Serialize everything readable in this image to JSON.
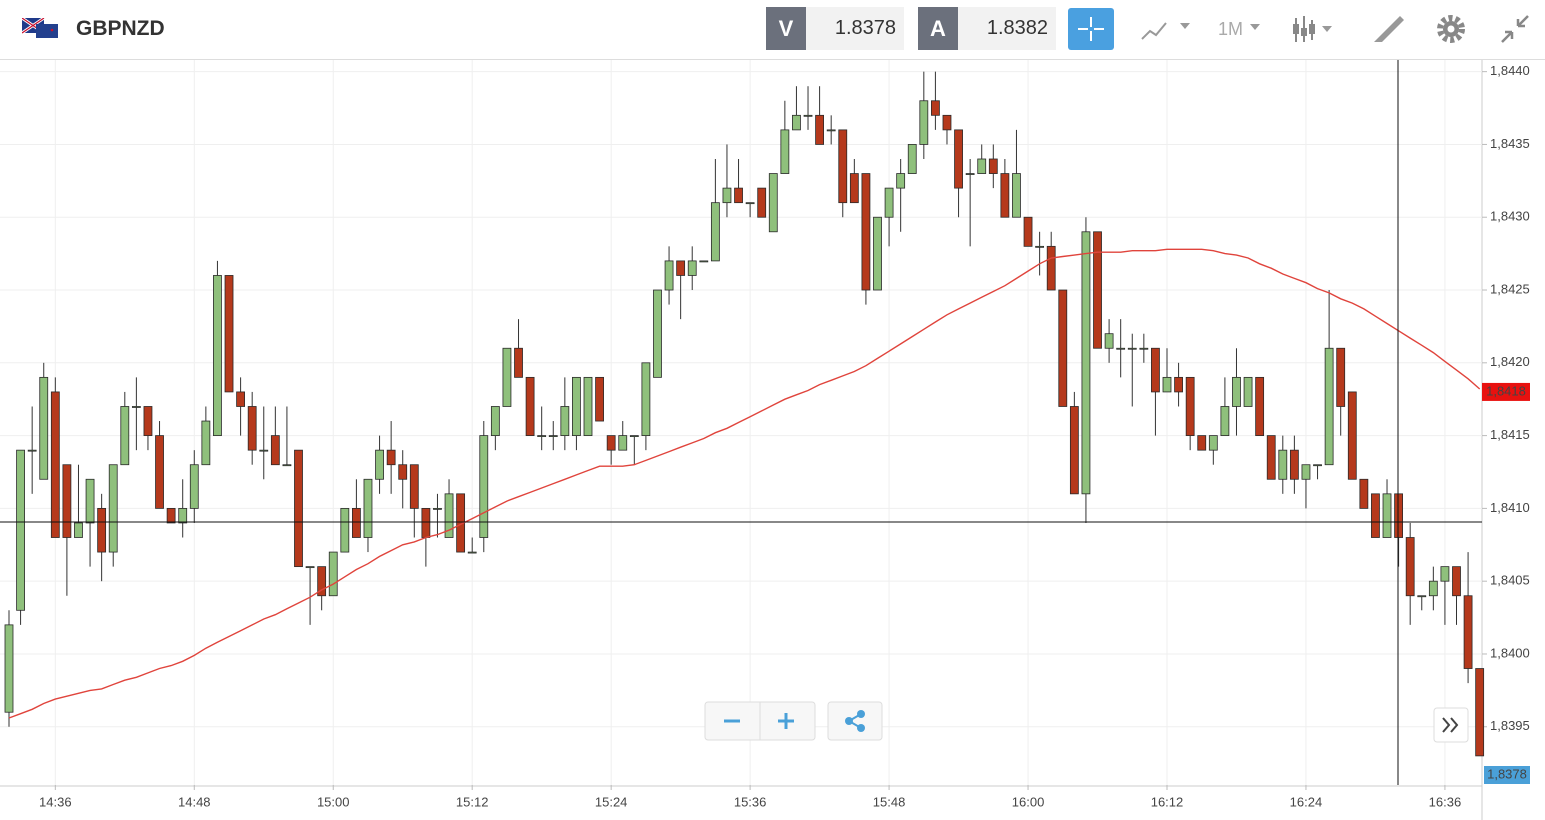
{
  "toolbar": {
    "symbol": "GBPNZD",
    "sell_label": "V",
    "sell_price": "1.8378",
    "buy_label": "A",
    "buy_price": "1.8382",
    "timeframe": "1M"
  },
  "chart_data": {
    "type": "candlestick",
    "categories": [
      null,
      null,
      null,
      null,
      "14:36",
      null,
      null,
      null,
      null,
      null,
      null,
      null,
      null,
      null,
      null,
      null,
      "14:48",
      null,
      null,
      null,
      null,
      null,
      null,
      null,
      null,
      null,
      null,
      null,
      "15:00",
      null,
      null,
      null,
      null,
      null,
      null,
      null,
      null,
      null,
      null,
      null,
      "15:12",
      null,
      null,
      null,
      null,
      null,
      null,
      null,
      null,
      null,
      null,
      null,
      "15:24",
      null,
      null,
      null,
      null,
      null,
      null,
      null,
      null,
      null,
      null,
      null,
      "15:36",
      null,
      null,
      null,
      null,
      null,
      null,
      null,
      null,
      null,
      null,
      null,
      "15:48",
      null,
      null,
      null,
      null,
      null,
      null,
      null,
      null,
      null,
      null,
      null,
      "16:00",
      null,
      null,
      null,
      null,
      null,
      null,
      null,
      null,
      null,
      null,
      null,
      "16:12",
      null,
      null,
      null,
      null,
      null,
      null,
      null,
      null,
      null,
      null,
      null,
      "16:24",
      null,
      null,
      null,
      null,
      null,
      null,
      null,
      null,
      null,
      null,
      null,
      "16:36",
      null,
      null,
      null
    ],
    "open": [
      1.8396,
      1.8403,
      1.8414,
      1.8412,
      1.8418,
      1.8413,
      1.8408,
      1.8409,
      1.841,
      1.8407,
      1.8413,
      1.8417,
      1.8417,
      1.8415,
      1.841,
      1.8409,
      1.841,
      1.8413,
      1.8415,
      1.8426,
      1.8418,
      1.8417,
      1.8414,
      1.8415,
      1.8413,
      1.8414,
      1.8406,
      1.8406,
      1.8404,
      1.8407,
      1.841,
      1.8408,
      1.8412,
      1.8414,
      1.8413,
      1.8413,
      1.841,
      1.841,
      1.8408,
      1.8411,
      1.8407,
      1.8408,
      1.8415,
      1.8417,
      1.8421,
      1.8419,
      1.8415,
      1.8415,
      1.8415,
      1.8415,
      1.8415,
      1.8419,
      1.8415,
      1.8414,
      1.8415,
      1.8415,
      1.8419,
      1.8425,
      1.8427,
      1.8426,
      1.8427,
      1.8427,
      1.8431,
      1.8432,
      1.8431,
      1.8432,
      1.8429,
      1.8433,
      1.8436,
      1.8437,
      1.8437,
      1.8436,
      1.8436,
      1.8433,
      1.8433,
      1.8425,
      1.843,
      1.8432,
      1.8433,
      1.8435,
      1.8438,
      1.8437,
      1.8436,
      1.8433,
      1.8433,
      1.8434,
      1.8433,
      1.843,
      1.843,
      1.8428,
      1.8428,
      1.8425,
      1.8417,
      1.8411,
      1.8429,
      1.8421,
      1.8421,
      1.8421,
      1.8421,
      1.8421,
      1.8418,
      1.8419,
      1.8419,
      1.8415,
      1.8414,
      1.8415,
      1.8417,
      1.8417,
      1.8419,
      1.8415,
      1.8412,
      1.8414,
      1.8412,
      1.8413,
      1.8413,
      1.8421,
      1.8418,
      1.8412,
      1.8411,
      1.8408,
      1.8411,
      1.8408,
      1.8404,
      1.8404,
      1.8405,
      1.8406,
      1.8404,
      1.8399
    ],
    "high": [
      1.8403,
      1.8414,
      1.8417,
      1.842,
      1.8419,
      1.8413,
      1.8413,
      1.8412,
      1.8411,
      1.8413,
      1.8418,
      1.8419,
      1.8417,
      1.8416,
      1.841,
      1.8412,
      1.8414,
      1.8417,
      1.8427,
      1.8426,
      1.8419,
      1.8418,
      1.8417,
      1.8417,
      1.8417,
      1.8414,
      1.8406,
      1.8406,
      1.8407,
      1.841,
      1.8412,
      1.8412,
      1.8415,
      1.8416,
      1.8414,
      1.8413,
      1.841,
      1.8411,
      1.8412,
      1.8411,
      1.8408,
      1.8416,
      1.8417,
      1.8421,
      1.8423,
      1.8419,
      1.8417,
      1.8416,
      1.8419,
      1.8419,
      1.8419,
      1.8419,
      1.8415,
      1.8416,
      1.8415,
      1.842,
      1.8425,
      1.8428,
      1.8427,
      1.8428,
      1.8427,
      1.8434,
      1.8435,
      1.8434,
      1.8431,
      1.8432,
      1.8433,
      1.8438,
      1.8439,
      1.8439,
      1.8439,
      1.8437,
      1.8436,
      1.8434,
      1.8433,
      1.843,
      1.8432,
      1.8434,
      1.8435,
      1.844,
      1.844,
      1.8437,
      1.8436,
      1.8434,
      1.8435,
      1.8435,
      1.8434,
      1.8436,
      1.843,
      1.8429,
      1.8429,
      1.8425,
      1.8418,
      1.843,
      1.8429,
      1.8423,
      1.8423,
      1.8422,
      1.8422,
      1.8421,
      1.8421,
      1.842,
      1.8419,
      1.8415,
      1.8415,
      1.8419,
      1.8421,
      1.8419,
      1.8419,
      1.8415,
      1.8415,
      1.8415,
      1.8413,
      1.8413,
      1.8425,
      1.8421,
      1.8418,
      1.8412,
      1.8411,
      1.8412,
      1.8411,
      1.8409,
      1.8404,
      1.8406,
      1.8406,
      1.8406,
      1.8407,
      1.8399
    ],
    "low": [
      1.8395,
      1.8402,
      1.8411,
      1.8412,
      1.8408,
      1.8404,
      1.8408,
      1.8406,
      1.8405,
      1.8406,
      1.8413,
      1.8414,
      1.8414,
      1.841,
      1.8409,
      1.8408,
      1.8409,
      1.8413,
      1.8415,
      1.8418,
      1.8415,
      1.8413,
      1.8412,
      1.8413,
      1.8413,
      1.8406,
      1.8402,
      1.8403,
      1.8404,
      1.8407,
      1.8408,
      1.8407,
      1.8411,
      1.8411,
      1.841,
      1.8408,
      1.8406,
      1.8408,
      1.8408,
      1.8407,
      1.8407,
      1.8407,
      1.8414,
      1.8417,
      1.8419,
      1.8415,
      1.8414,
      1.8414,
      1.8414,
      1.8414,
      1.8415,
      1.8416,
      1.8413,
      1.8414,
      1.8413,
      1.8414,
      1.8419,
      1.8424,
      1.8423,
      1.8425,
      1.8427,
      1.8427,
      1.843,
      1.8431,
      1.843,
      1.843,
      1.8429,
      1.8433,
      1.8436,
      1.8436,
      1.8435,
      1.8435,
      1.843,
      1.8431,
      1.8424,
      1.8425,
      1.8428,
      1.8429,
      1.8433,
      1.8434,
      1.8436,
      1.8435,
      1.843,
      1.8428,
      1.8433,
      1.8432,
      1.843,
      1.843,
      1.8428,
      1.8426,
      1.8425,
      1.8417,
      1.8411,
      1.8409,
      1.8421,
      1.842,
      1.8419,
      1.8417,
      1.842,
      1.8415,
      1.8418,
      1.8417,
      1.8414,
      1.8414,
      1.8413,
      1.8415,
      1.8415,
      1.8417,
      1.8415,
      1.8412,
      1.8411,
      1.8411,
      1.841,
      1.8412,
      1.8413,
      1.8415,
      1.8412,
      1.841,
      1.8408,
      1.8408,
      1.8406,
      1.8402,
      1.8403,
      1.8403,
      1.8402,
      1.8402,
      1.8398,
      1.8393
    ],
    "close": [
      1.8402,
      1.8414,
      1.8414,
      1.8419,
      1.8408,
      1.8408,
      1.8409,
      1.8412,
      1.8407,
      1.8413,
      1.8417,
      1.8417,
      1.8415,
      1.841,
      1.8409,
      1.841,
      1.8413,
      1.8416,
      1.8426,
      1.8418,
      1.8417,
      1.8414,
      1.8414,
      1.8413,
      1.8413,
      1.8406,
      1.8406,
      1.8404,
      1.8407,
      1.841,
      1.8408,
      1.8412,
      1.8414,
      1.8413,
      1.8412,
      1.841,
      1.8408,
      1.841,
      1.8411,
      1.8407,
      1.8407,
      1.8415,
      1.8417,
      1.8421,
      1.8419,
      1.8415,
      1.8415,
      1.8415,
      1.8417,
      1.8419,
      1.8419,
      1.8416,
      1.8414,
      1.8415,
      1.8415,
      1.842,
      1.8425,
      1.8427,
      1.8426,
      1.8427,
      1.8427,
      1.8431,
      1.8432,
      1.8431,
      1.8431,
      1.843,
      1.8433,
      1.8436,
      1.8437,
      1.8437,
      1.8435,
      1.8436,
      1.8431,
      1.8431,
      1.8425,
      1.843,
      1.8432,
      1.8433,
      1.8435,
      1.8438,
      1.8437,
      1.8436,
      1.8432,
      1.8433,
      1.8434,
      1.8433,
      1.843,
      1.8433,
      1.8428,
      1.8428,
      1.8425,
      1.8417,
      1.8411,
      1.8429,
      1.8421,
      1.8422,
      1.8421,
      1.8421,
      1.8421,
      1.8418,
      1.8419,
      1.8418,
      1.8415,
      1.8414,
      1.8415,
      1.8417,
      1.8419,
      1.8419,
      1.8415,
      1.8412,
      1.8414,
      1.8412,
      1.8413,
      1.8413,
      1.8421,
      1.8417,
      1.8412,
      1.841,
      1.8408,
      1.8411,
      1.8408,
      1.8404,
      1.8404,
      1.8405,
      1.8406,
      1.8404,
      1.8399,
      1.8393
    ],
    "up_color": "#8fc07c",
    "down_color": "#b5391c",
    "moving_average": {
      "color": "#e0443c",
      "values": [
        1.83956,
        1.83959,
        1.83962,
        1.83966,
        1.83969,
        1.83971,
        1.83973,
        1.83975,
        1.83976,
        1.83979,
        1.83982,
        1.83984,
        1.83987,
        1.8399,
        1.83992,
        1.83995,
        1.83999,
        1.84004,
        1.84008,
        1.84012,
        1.84016,
        1.8402,
        1.84024,
        1.84027,
        1.84031,
        1.84035,
        1.84039,
        1.84044,
        1.84048,
        1.84053,
        1.84058,
        1.84062,
        1.84067,
        1.84071,
        1.84075,
        1.84077,
        1.8408,
        1.84082,
        1.84085,
        1.84089,
        1.84093,
        1.84097,
        1.84101,
        1.84105,
        1.84108,
        1.84111,
        1.84114,
        1.84117,
        1.8412,
        1.84123,
        1.84126,
        1.84129,
        1.84129,
        1.84129,
        1.8413,
        1.84133,
        1.84136,
        1.84139,
        1.84142,
        1.84145,
        1.84148,
        1.84152,
        1.84155,
        1.84159,
        1.84163,
        1.84167,
        1.84171,
        1.84175,
        1.84178,
        1.84181,
        1.84185,
        1.84188,
        1.84191,
        1.84194,
        1.84198,
        1.84203,
        1.84208,
        1.84213,
        1.84218,
        1.84223,
        1.84228,
        1.84233,
        1.84237,
        1.84241,
        1.84245,
        1.84249,
        1.84253,
        1.84258,
        1.84263,
        1.84268,
        1.84272,
        1.84273,
        1.84274,
        1.84275,
        1.84276,
        1.84276,
        1.84276,
        1.84277,
        1.84277,
        1.84277,
        1.84278,
        1.84278,
        1.84278,
        1.84278,
        1.84277,
        1.84275,
        1.84274,
        1.84272,
        1.84268,
        1.84265,
        1.84261,
        1.84258,
        1.84255,
        1.84251,
        1.84248,
        1.84244,
        1.84241,
        1.84237,
        1.84232,
        1.84227,
        1.84222,
        1.84217,
        1.84212,
        1.84207,
        1.84201,
        1.84195,
        1.84189,
        1.84182
      ]
    },
    "ma_tag": {
      "value": 1.8418,
      "label": "1,8418"
    },
    "price_tag": "1,8378",
    "ylim": [
      1.8391,
      1.84408
    ],
    "yticks": [
      {
        "value": 1.8395,
        "label": "1,8395"
      },
      {
        "value": 1.84,
        "label": "1,8400"
      },
      {
        "value": 1.8405,
        "label": "1,8405"
      },
      {
        "value": 1.841,
        "label": "1,8410"
      },
      {
        "value": 1.8415,
        "label": "1,8415"
      },
      {
        "value": 1.842,
        "label": "1,8420"
      },
      {
        "value": 1.8425,
        "label": "1,8425"
      },
      {
        "value": 1.843,
        "label": "1,8430"
      },
      {
        "value": 1.8435,
        "label": "1,8435"
      },
      {
        "value": 1.844,
        "label": "1,8440"
      }
    ],
    "grid": true
  }
}
